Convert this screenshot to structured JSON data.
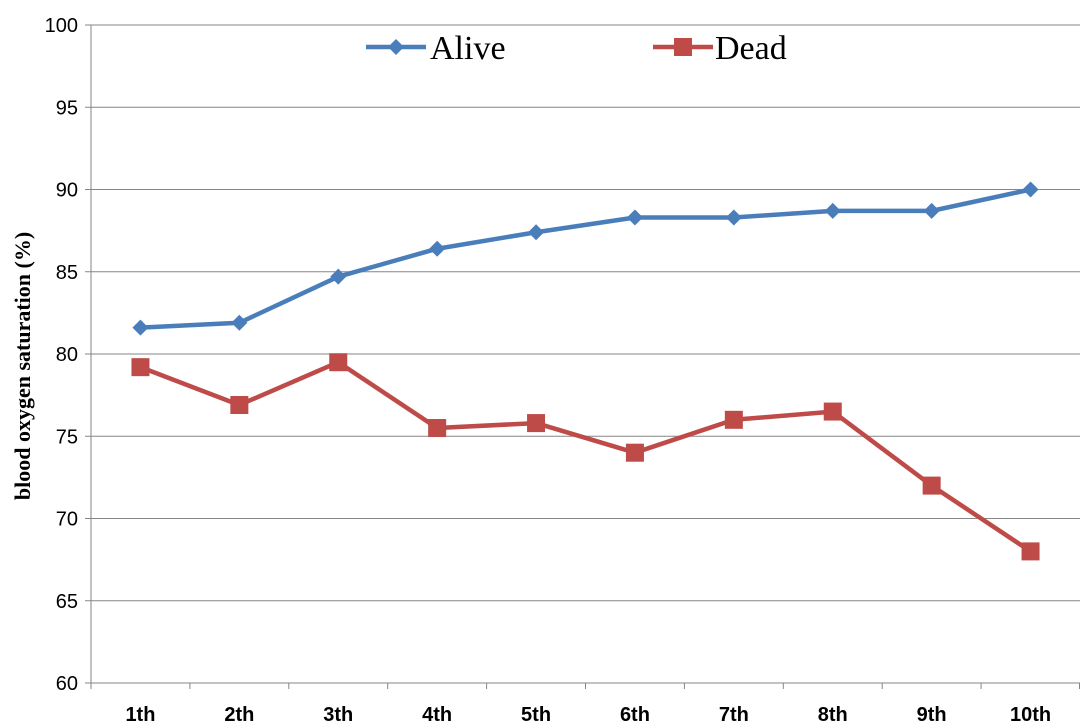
{
  "chart_data": {
    "type": "line",
    "title": "",
    "xlabel": "",
    "ylabel": "blood oxygen saturation (%)",
    "categories": [
      "1th",
      "2th",
      "3th",
      "4th",
      "5th",
      "6th",
      "7th",
      "8th",
      "9th",
      "10th"
    ],
    "ylim": [
      60,
      100
    ],
    "yticks": [
      "60",
      "65",
      "70",
      "75",
      "80",
      "85",
      "90",
      "95",
      "100"
    ],
    "grid": true,
    "legend": "top",
    "series": [
      {
        "name": "Alive",
        "color": "#4a7ebb",
        "marker": "diamond",
        "values": [
          81.6,
          81.9,
          84.7,
          86.4,
          87.4,
          88.3,
          88.3,
          88.7,
          88.7,
          90.0
        ]
      },
      {
        "name": "Dead",
        "color": "#be4b48",
        "marker": "square",
        "values": [
          79.2,
          76.9,
          79.5,
          75.5,
          75.8,
          74.0,
          76.0,
          76.5,
          72.0,
          68.0
        ]
      }
    ]
  }
}
